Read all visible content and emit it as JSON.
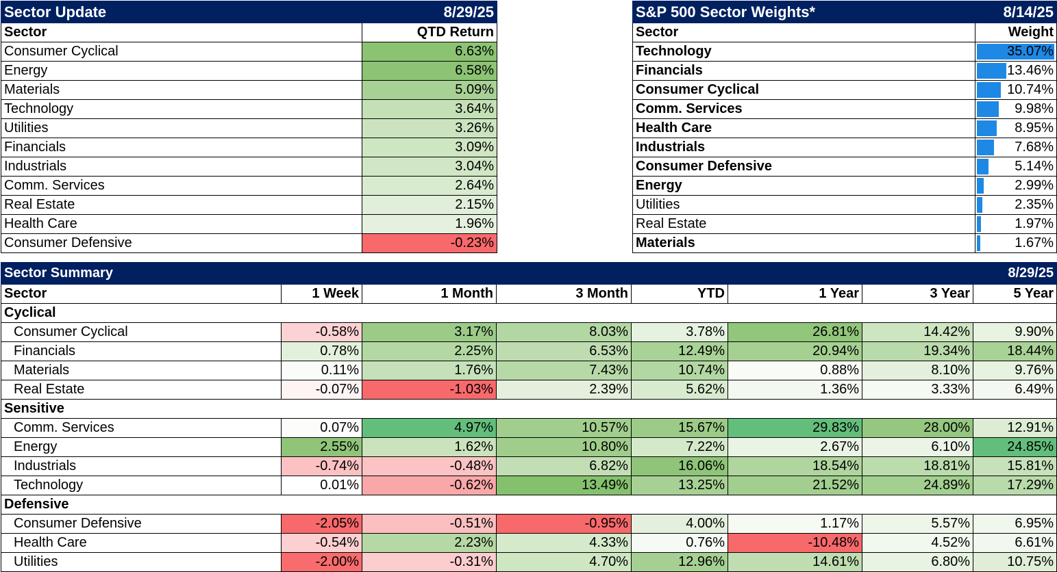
{
  "sector_update": {
    "title": "Sector Update",
    "date": "8/29/25",
    "col_sector": "Sector",
    "col_return": "QTD Return",
    "rows": [
      {
        "sector": "Consumer Cyclical",
        "value": "6.63%",
        "color": "#8cc373"
      },
      {
        "sector": "Energy",
        "value": "6.58%",
        "color": "#8dc374"
      },
      {
        "sector": "Materials",
        "value": "5.09%",
        "color": "#a8d195"
      },
      {
        "sector": "Technology",
        "value": "3.64%",
        "color": "#c4e0b6"
      },
      {
        "sector": "Utilities",
        "value": "3.26%",
        "color": "#cbe4bf"
      },
      {
        "sector": "Financials",
        "value": "3.09%",
        "color": "#cfe6c3"
      },
      {
        "sector": "Industrials",
        "value": "3.04%",
        "color": "#d0e6c4"
      },
      {
        "sector": "Comm. Services",
        "value": "2.64%",
        "color": "#d8ebcf"
      },
      {
        "sector": "Real Estate",
        "value": "2.15%",
        "color": "#e1efda"
      },
      {
        "sector": "Health Care",
        "value": "1.96%",
        "color": "#e5f1de"
      },
      {
        "sector": "Consumer Defensive",
        "value": "-0.23%",
        "color": "#f8696b"
      }
    ]
  },
  "sector_weights": {
    "title": "S&P 500 Sector Weights*",
    "date": "8/14/25",
    "col_sector": "Sector",
    "col_weight": "Weight",
    "bar_color": "#1e88e5",
    "rows": [
      {
        "sector": "Technology",
        "value": "35.07%",
        "weight": 35.07,
        "bold": true
      },
      {
        "sector": "Financials",
        "value": "13.46%",
        "weight": 13.46,
        "bold": true
      },
      {
        "sector": "Consumer Cyclical",
        "value": "10.74%",
        "weight": 10.74,
        "bold": true
      },
      {
        "sector": "Comm. Services",
        "value": "9.98%",
        "weight": 9.98,
        "bold": true
      },
      {
        "sector": "Health Care",
        "value": "8.95%",
        "weight": 8.95,
        "bold": true
      },
      {
        "sector": "Industrials",
        "value": "7.68%",
        "weight": 7.68,
        "bold": true
      },
      {
        "sector": "Consumer Defensive",
        "value": "5.14%",
        "weight": 5.14,
        "bold": true
      },
      {
        "sector": "Energy",
        "value": "2.99%",
        "weight": 2.99,
        "bold": true
      },
      {
        "sector": "Utilities",
        "value": "2.35%",
        "weight": 2.35,
        "bold": false
      },
      {
        "sector": "Real Estate",
        "value": "1.97%",
        "weight": 1.97,
        "bold": false
      },
      {
        "sector": "Materials",
        "value": "1.67%",
        "weight": 1.67,
        "bold": true
      }
    ]
  },
  "sector_summary": {
    "title": "Sector Summary",
    "date": "8/29/25",
    "headers": [
      "Sector",
      "1 Week",
      "1 Month",
      "3 Month",
      "YTD",
      "1 Year",
      "3 Year",
      "5 Year"
    ],
    "groups": [
      {
        "name": "Cyclical",
        "rows": [
          {
            "sector": "Consumer Cyclical",
            "values": [
              "-0.58%",
              "3.17%",
              "8.03%",
              "3.78%",
              "26.81%",
              "14.42%",
              "9.90%"
            ],
            "colors": [
              "#fcd3d4",
              "#9ccb88",
              "#b3d7a3",
              "#e6f2e0",
              "#91c67b",
              "#cde5c1",
              "#e8f3e2"
            ]
          },
          {
            "sector": "Financials",
            "values": [
              "0.78%",
              "2.25%",
              "6.53%",
              "12.49%",
              "20.94%",
              "19.34%",
              "18.44%"
            ],
            "colors": [
              "#e3f0dc",
              "#b4d8a4",
              "#bedcb0",
              "#a9d297",
              "#a5d092",
              "#b9daab",
              "#a9d297"
            ]
          },
          {
            "sector": "Materials",
            "values": [
              "0.11%",
              "1.76%",
              "7.43%",
              "10.74%",
              "0.88%",
              "8.10%",
              "9.76%"
            ],
            "colors": [
              "#fafcf9",
              "#c6e1b9",
              "#b7d9a8",
              "#b3d7a2",
              "#f8fbf6",
              "#e4f0dd",
              "#e7f2e1"
            ]
          },
          {
            "sector": "Real Estate",
            "values": [
              "-0.07%",
              "-1.03%",
              "2.39%",
              "5.62%",
              "1.36%",
              "3.33%",
              "6.49%"
            ],
            "colors": [
              "#fef4f4",
              "#f8696b",
              "#e4f0dd",
              "#d8ebcf",
              "#f3f9f0",
              "#f5faf2",
              "#f3f9f1"
            ]
          }
        ]
      },
      {
        "name": "Sensitive",
        "rows": [
          {
            "sector": "Comm. Services",
            "values": [
              "0.07%",
              "4.97%",
              "10.57%",
              "15.67%",
              "29.83%",
              "28.00%",
              "12.91%"
            ],
            "colors": [
              "#fcfdfb",
              "#63be7b",
              "#a1ce8d",
              "#9ccb88",
              "#63be7b",
              "#95c780",
              "#dcedd3"
            ]
          },
          {
            "sector": "Energy",
            "values": [
              "2.55%",
              "1.62%",
              "10.80%",
              "7.22%",
              "2.67%",
              "6.10%",
              "24.85%"
            ],
            "colors": [
              "#8fc479",
              "#cae3bd",
              "#a0cd8c",
              "#d4e9ca",
              "#e9f4e4",
              "#ebf4e6",
              "#63be7b"
            ]
          },
          {
            "sector": "Industrials",
            "values": [
              "-0.74%",
              "-0.48%",
              "6.82%",
              "16.06%",
              "18.54%",
              "18.81%",
              "15.81%"
            ],
            "colors": [
              "#fcc2c3",
              "#fbc3c4",
              "#c2deb4",
              "#8fc479",
              "#b0d59f",
              "#bbdcad",
              "#c7e1ba"
            ]
          },
          {
            "sector": "Technology",
            "values": [
              "0.01%",
              "-0.62%",
              "13.49%",
              "13.25%",
              "21.52%",
              "24.89%",
              "17.29%"
            ],
            "colors": [
              "#ffffff",
              "#f9a7a8",
              "#85c16d",
              "#a7d194",
              "#a2cf8f",
              "#a3cf90",
              "#b9daab"
            ]
          }
        ]
      },
      {
        "name": "Defensive",
        "rows": [
          {
            "sector": "Consumer Defensive",
            "values": [
              "-2.05%",
              "-0.51%",
              "-0.95%",
              "4.00%",
              "1.17%",
              "5.57%",
              "6.95%"
            ],
            "colors": [
              "#f8696b",
              "#fbbfc0",
              "#f8696b",
              "#e4f0dd",
              "#f5faf3",
              "#eef6ea",
              "#f0f7ed"
            ]
          },
          {
            "sector": "Health Care",
            "values": [
              "-0.54%",
              "2.23%",
              "4.33%",
              "0.76%",
              "-10.48%",
              "4.52%",
              "6.61%"
            ],
            "colors": [
              "#fcd0d1",
              "#b5d8a5",
              "#d5eacb",
              "#f6faf4",
              "#f8696b",
              "#f1f8ee",
              "#f2f8ef"
            ]
          },
          {
            "sector": "Utilities",
            "values": [
              "-2.00%",
              "-0.31%",
              "4.70%",
              "12.96%",
              "14.61%",
              "6.80%",
              "10.75%"
            ],
            "colors": [
              "#f86c6e",
              "#fccdce",
              "#cee6c2",
              "#a6d093",
              "#bfddb1",
              "#e8f3e3",
              "#e0eed8"
            ]
          }
        ]
      }
    ]
  }
}
